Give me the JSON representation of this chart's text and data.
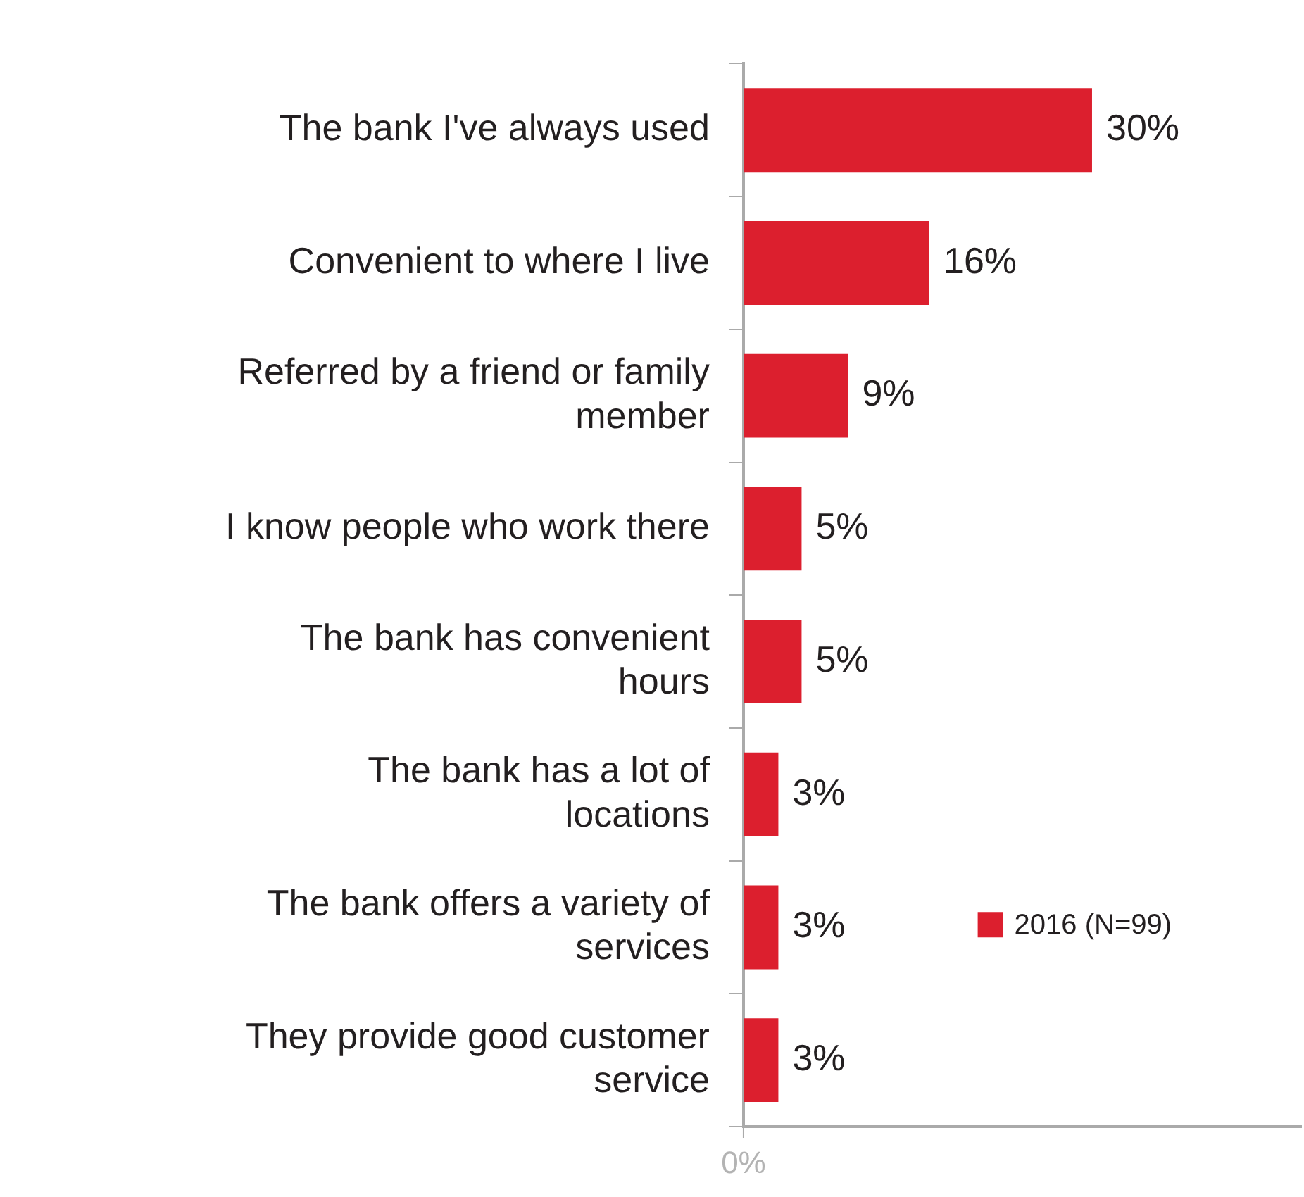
{
  "chart_data": {
    "type": "bar",
    "orientation": "horizontal",
    "categories": [
      "The bank I've always used",
      "Convenient to where I live",
      "Referred by a friend or family member",
      "I know people who work there",
      "The bank has convenient hours",
      "The bank has a lot of locations",
      "The bank offers a variety of services",
      "They provide good customer service"
    ],
    "series": [
      {
        "name": "2016 (N=99)",
        "color": "#dc1f2e",
        "values": [
          30,
          16,
          9,
          5,
          5,
          3,
          3,
          3
        ],
        "value_labels": [
          "30%",
          "16%",
          "9%",
          "5%",
          "5%",
          "3%",
          "3%",
          "3%"
        ]
      }
    ],
    "xlim": [
      0,
      48
    ],
    "annotations": [
      "0%"
    ],
    "legend": "right"
  }
}
